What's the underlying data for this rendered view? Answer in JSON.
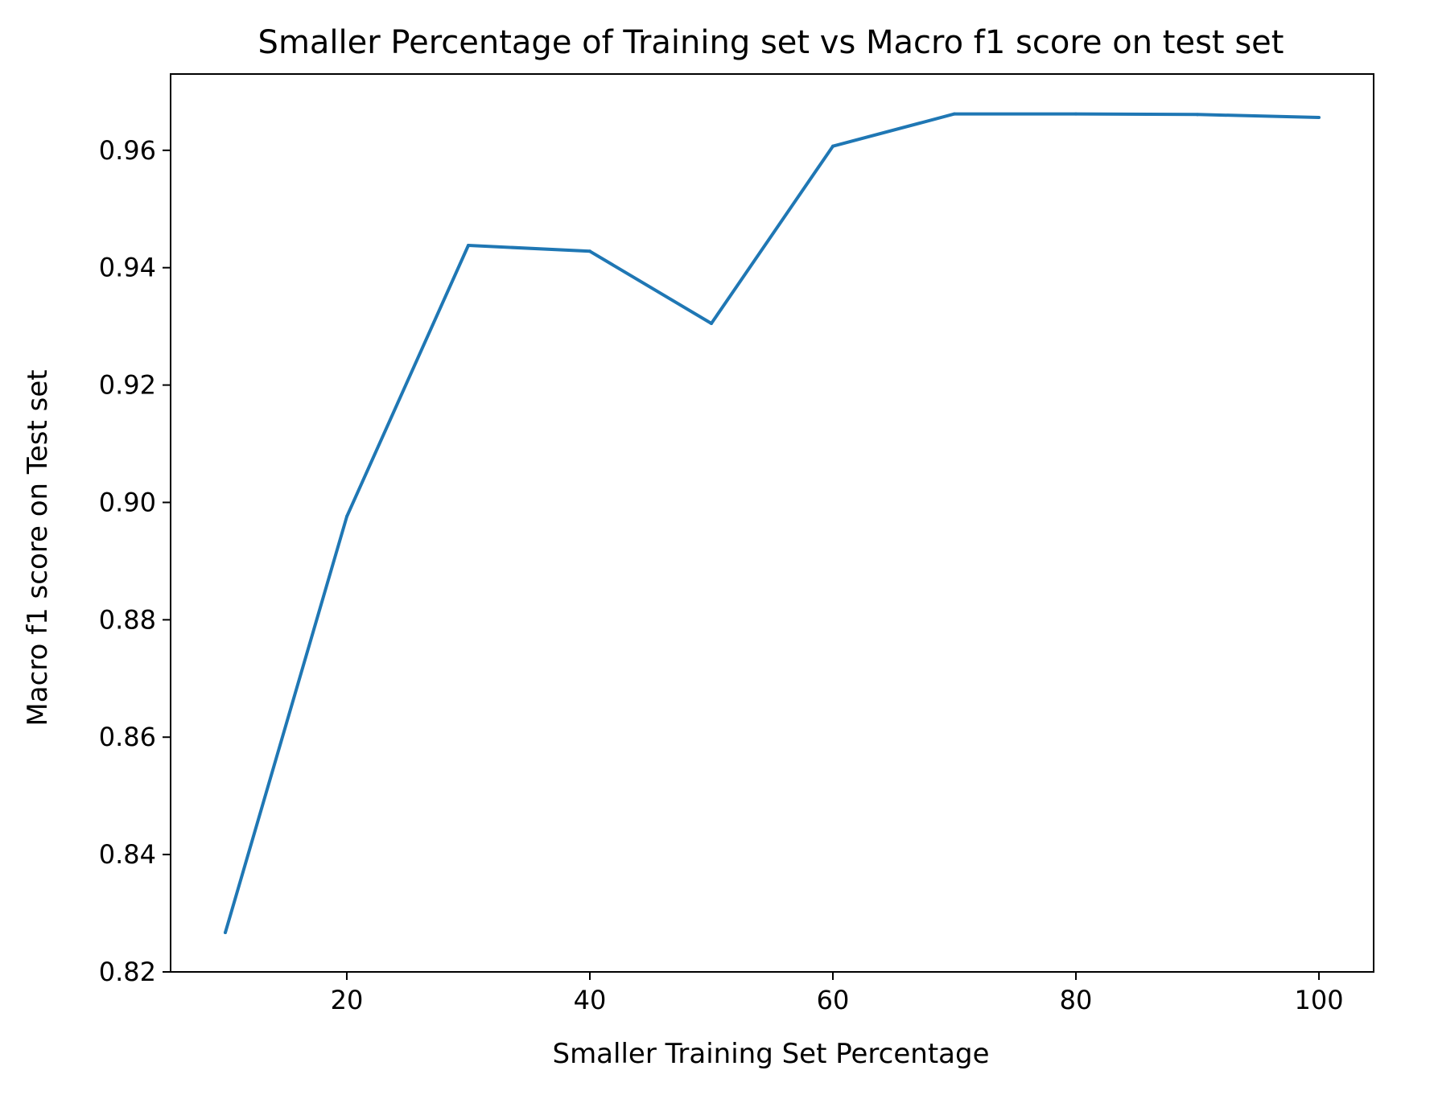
{
  "chart_data": {
    "type": "line",
    "title": "Smaller Percentage of Training set vs Macro f1 score on test set",
    "xlabel": "Smaller Training Set Percentage",
    "ylabel": "Macro f1 score on Test set",
    "xlim": [
      5.5,
      104.5
    ],
    "ylim": [
      0.82,
      0.973
    ],
    "xticks": [
      20,
      40,
      60,
      80,
      100
    ],
    "xtick_labels": [
      "20",
      "40",
      "60",
      "80",
      "100"
    ],
    "yticks": [
      0.82,
      0.84,
      0.86,
      0.88,
      0.9,
      0.92,
      0.94,
      0.96
    ],
    "ytick_labels": [
      "0.82",
      "0.84",
      "0.86",
      "0.88",
      "0.90",
      "0.92",
      "0.94",
      "0.96"
    ],
    "grid": false,
    "series": [
      {
        "color": "#1f77b4",
        "x": [
          10,
          20,
          30,
          40,
          50,
          60,
          70,
          80,
          90,
          100
        ],
        "y": [
          0.8267,
          0.8976,
          0.9438,
          0.9428,
          0.9305,
          0.9607,
          0.9662,
          0.9662,
          0.9661,
          0.9656
        ]
      }
    ]
  }
}
